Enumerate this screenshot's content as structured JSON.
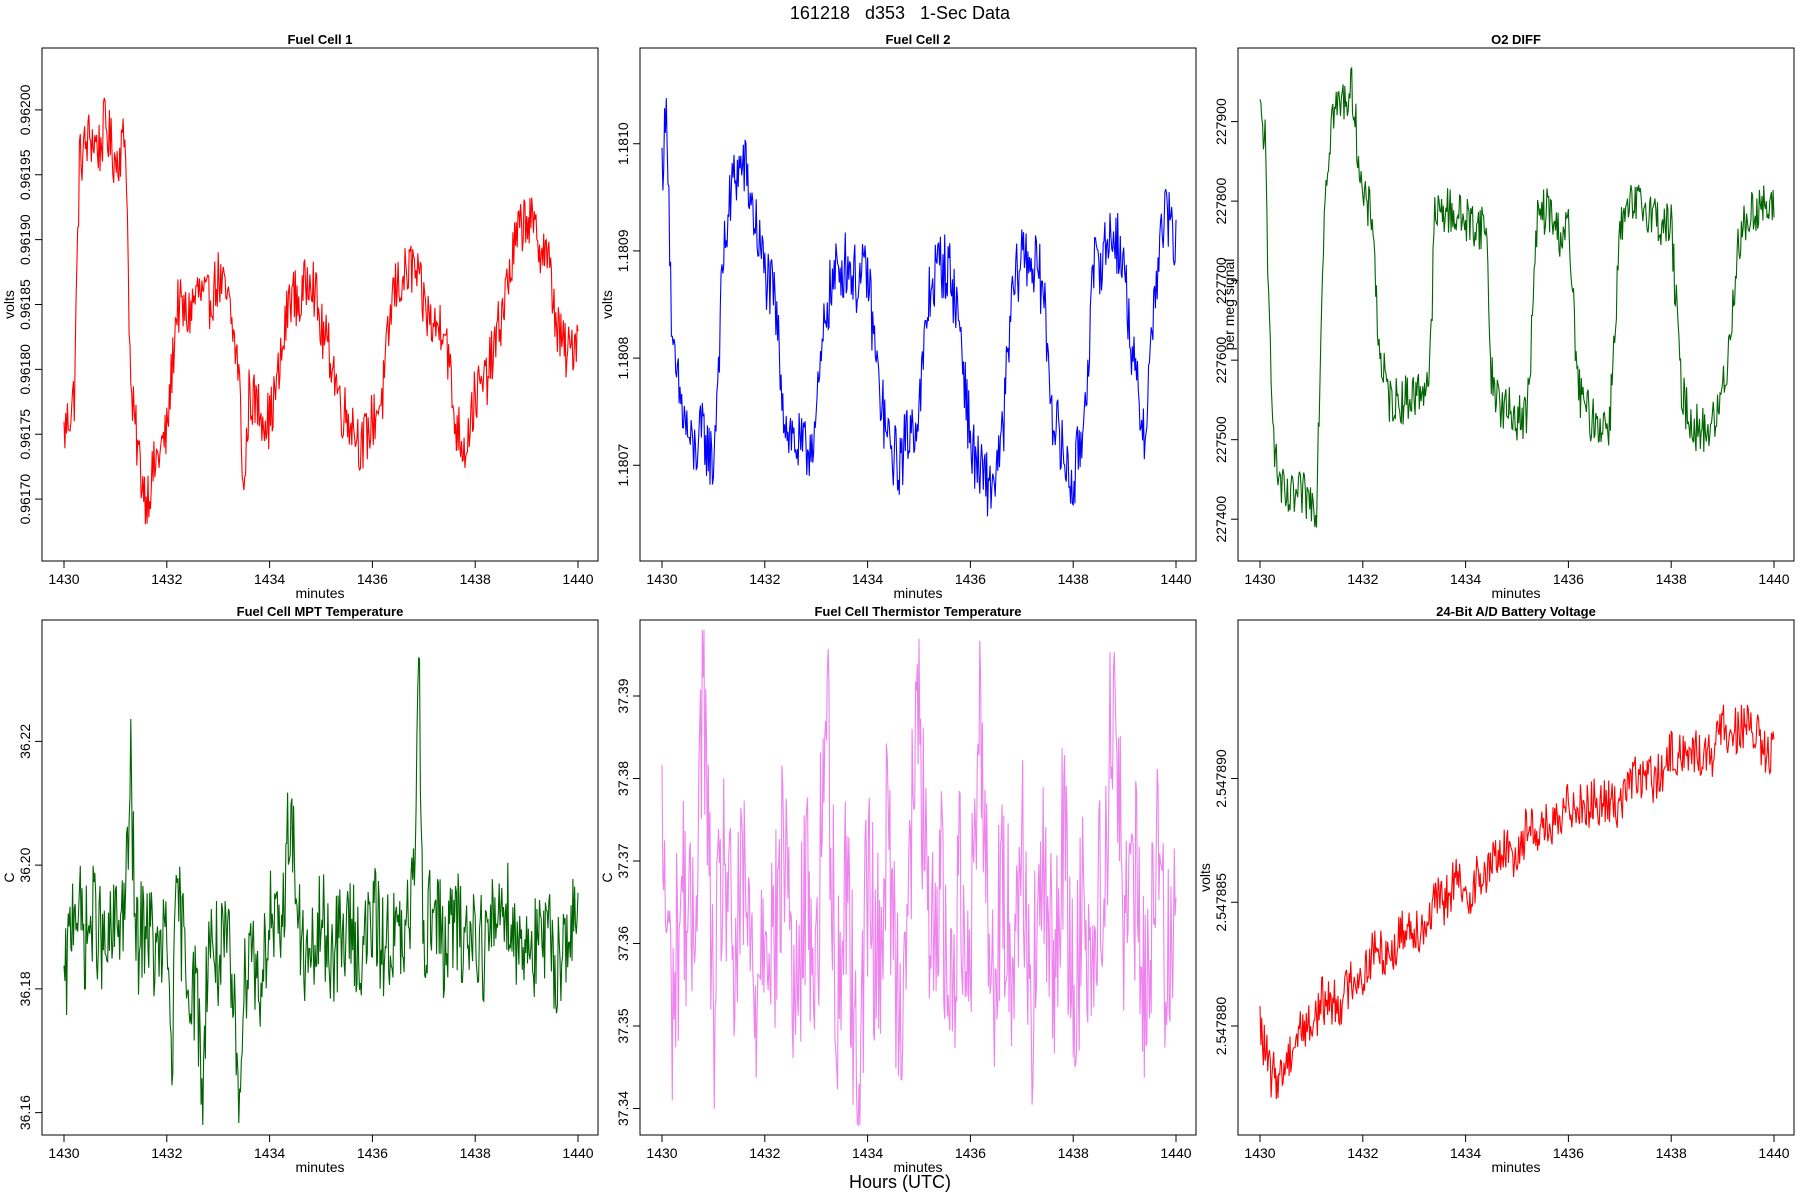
{
  "header": {
    "title": "161218   d353   1-Sec Data"
  },
  "footer": {
    "xlabel": "Hours (UTC)"
  },
  "chart_data": [
    {
      "type": "line",
      "title": "Fuel Cell 1",
      "xlabel": "minutes",
      "ylabel": "volts",
      "color": "#ff0000",
      "xlim": [
        1430,
        1440
      ],
      "ylim": [
        0.96166,
        0.96204
      ],
      "xticks": [
        "1430",
        "1432",
        "1434",
        "1436",
        "1438",
        "1440"
      ],
      "yticks": [
        "0.96170",
        "0.96175",
        "0.96180",
        "0.96185",
        "0.96190",
        "0.96195",
        "0.96200"
      ],
      "series": [
        {
          "x": [
            1430.0,
            1430.2,
            1430.3,
            1430.5,
            1430.7,
            1430.8,
            1431.0,
            1431.2,
            1431.3,
            1431.5,
            1431.6,
            1431.8,
            1432.0,
            1432.2,
            1432.4,
            1432.6,
            1432.8,
            1433.0,
            1433.2,
            1433.4,
            1433.5,
            1433.6,
            1433.8,
            1434.0,
            1434.2,
            1434.4,
            1434.6,
            1434.8,
            1435.0,
            1435.2,
            1435.4,
            1435.6,
            1435.8,
            1436.0,
            1436.2,
            1436.4,
            1436.6,
            1436.8,
            1437.0,
            1437.2,
            1437.4,
            1437.6,
            1437.8,
            1438.0,
            1438.2,
            1438.4,
            1438.6,
            1438.8,
            1439.0,
            1439.2,
            1439.4,
            1439.6,
            1439.8,
            1440.0
          ],
          "y": [
            0.96175,
            0.96178,
            0.96196,
            0.96198,
            0.96197,
            0.96199,
            0.96196,
            0.96198,
            0.96178,
            0.96172,
            0.9617,
            0.96173,
            0.96175,
            0.96185,
            0.96184,
            0.96186,
            0.96185,
            0.96187,
            0.96185,
            0.9618,
            0.9617,
            0.96178,
            0.96177,
            0.96176,
            0.9618,
            0.96186,
            0.96185,
            0.96188,
            0.96183,
            0.96181,
            0.96177,
            0.96176,
            0.96174,
            0.96176,
            0.96178,
            0.96186,
            0.96187,
            0.96188,
            0.96185,
            0.96183,
            0.96184,
            0.96176,
            0.96174,
            0.96178,
            0.96179,
            0.96182,
            0.96186,
            0.9619,
            0.96192,
            0.9619,
            0.96189,
            0.96183,
            0.96181,
            0.96183
          ]
        }
      ]
    },
    {
      "type": "line",
      "title": "Fuel Cell 2",
      "xlabel": "minutes",
      "ylabel": "volts",
      "color": "#0000ff",
      "xlim": [
        1430,
        1440
      ],
      "ylim": [
        1.18062,
        1.18108
      ],
      "xticks": [
        "1430",
        "1432",
        "1434",
        "1436",
        "1438",
        "1440"
      ],
      "yticks": [
        "1.1807",
        "1.1808",
        "1.1809",
        "1.1810"
      ],
      "series": [
        {
          "x": [
            1430.0,
            1430.1,
            1430.2,
            1430.4,
            1430.6,
            1430.8,
            1431.0,
            1431.2,
            1431.4,
            1431.6,
            1431.8,
            1432.0,
            1432.2,
            1432.4,
            1432.6,
            1432.8,
            1433.0,
            1433.2,
            1433.4,
            1433.6,
            1433.8,
            1434.0,
            1434.2,
            1434.4,
            1434.6,
            1434.8,
            1435.0,
            1435.2,
            1435.4,
            1435.6,
            1435.8,
            1436.0,
            1436.2,
            1436.4,
            1436.6,
            1436.8,
            1437.0,
            1437.2,
            1437.4,
            1437.6,
            1437.8,
            1438.0,
            1438.2,
            1438.4,
            1438.6,
            1438.8,
            1439.0,
            1439.2,
            1439.4,
            1439.6,
            1439.8,
            1440.0
          ],
          "y": [
            1.18098,
            1.18103,
            1.1808,
            1.18075,
            1.18071,
            1.18073,
            1.1807,
            1.1809,
            1.18097,
            1.18098,
            1.18093,
            1.18088,
            1.18085,
            1.18074,
            1.18072,
            1.18071,
            1.18074,
            1.18085,
            1.18088,
            1.18089,
            1.18087,
            1.18088,
            1.18078,
            1.18072,
            1.1807,
            1.18073,
            1.18075,
            1.18086,
            1.18089,
            1.18088,
            1.18083,
            1.18072,
            1.18069,
            1.18068,
            1.18071,
            1.18085,
            1.1809,
            1.18089,
            1.18087,
            1.18075,
            1.18071,
            1.18068,
            1.18074,
            1.18088,
            1.1809,
            1.18092,
            1.18088,
            1.18078,
            1.18073,
            1.18087,
            1.18094,
            1.1809
          ]
        }
      ]
    },
    {
      "type": "line",
      "title": "O2 DIFF",
      "xlabel": "minutes",
      "ylabel": "per meg signal",
      "color": "#006400",
      "xlim": [
        1430,
        1440
      ],
      "ylim": [
        227360,
        227980
      ],
      "xticks": [
        "1430",
        "1432",
        "1434",
        "1436",
        "1438",
        "1440"
      ],
      "yticks": [
        "227400",
        "227500",
        "227600",
        "227700",
        "227800",
        "227900"
      ],
      "series": [
        {
          "x": [
            1430.0,
            1430.1,
            1430.15,
            1430.3,
            1430.5,
            1430.8,
            1431.1,
            1431.25,
            1431.4,
            1431.6,
            1431.8,
            1432.0,
            1432.2,
            1432.3,
            1432.5,
            1432.8,
            1433.1,
            1433.3,
            1433.4,
            1433.6,
            1433.9,
            1434.2,
            1434.4,
            1434.5,
            1434.7,
            1435.0,
            1435.2,
            1435.4,
            1435.6,
            1435.8,
            1436.0,
            1436.2,
            1436.4,
            1436.6,
            1436.8,
            1437.0,
            1437.2,
            1437.4,
            1437.6,
            1437.8,
            1438.0,
            1438.2,
            1438.4,
            1438.6,
            1438.8,
            1438.9,
            1439.1,
            1439.3,
            1439.5,
            1439.7,
            1440.0
          ],
          "y": [
            227910,
            227880,
            227700,
            227470,
            227420,
            227430,
            227420,
            227800,
            227910,
            227925,
            227940,
            227800,
            227780,
            227620,
            227550,
            227550,
            227560,
            227580,
            227780,
            227790,
            227780,
            227770,
            227770,
            227580,
            227540,
            227530,
            227530,
            227780,
            227790,
            227760,
            227765,
            227560,
            227530,
            227520,
            227520,
            227760,
            227790,
            227795,
            227790,
            227770,
            227770,
            227560,
            227520,
            227510,
            227520,
            227530,
            227600,
            227745,
            227780,
            227795,
            227785
          ]
        }
      ]
    },
    {
      "type": "line",
      "title": "Fuel Cell MPT Temperature",
      "xlabel": "minutes",
      "ylabel": "C",
      "color": "#006400",
      "xlim": [
        1430,
        1440
      ],
      "ylim": [
        36.158,
        36.238
      ],
      "xticks": [
        "1430",
        "1432",
        "1434",
        "1436",
        "1438",
        "1440"
      ],
      "yticks": [
        "36.16",
        "36.18",
        "36.20",
        "36.22"
      ],
      "series": [
        {
          "x": [
            1430.0,
            1430.2,
            1430.4,
            1430.6,
            1430.8,
            1431.0,
            1431.2,
            1431.3,
            1431.4,
            1431.6,
            1431.8,
            1432.0,
            1432.1,
            1432.2,
            1432.4,
            1432.6,
            1432.7,
            1432.8,
            1433.0,
            1433.2,
            1433.4,
            1433.6,
            1433.8,
            1434.0,
            1434.2,
            1434.4,
            1434.6,
            1434.8,
            1435.0,
            1435.2,
            1435.4,
            1435.6,
            1435.8,
            1436.0,
            1436.2,
            1436.4,
            1436.6,
            1436.8,
            1436.9,
            1437.0,
            1437.2,
            1437.4,
            1437.6,
            1437.8,
            1438.0,
            1438.2,
            1438.4,
            1438.6,
            1438.8,
            1439.0,
            1439.2,
            1439.4,
            1439.6,
            1439.8,
            1440.0
          ],
          "y": [
            36.178,
            36.196,
            36.188,
            36.192,
            36.185,
            36.19,
            36.194,
            36.215,
            36.186,
            36.192,
            36.184,
            36.188,
            36.17,
            36.195,
            36.183,
            36.178,
            36.162,
            36.189,
            36.185,
            36.186,
            36.166,
            36.19,
            36.18,
            36.192,
            36.186,
            36.21,
            36.187,
            36.183,
            36.191,
            36.186,
            36.188,
            36.19,
            36.185,
            36.192,
            36.187,
            36.189,
            36.186,
            36.195,
            36.235,
            36.188,
            36.194,
            36.186,
            36.191,
            36.188,
            36.19,
            36.186,
            36.192,
            36.195,
            36.187,
            36.189,
            36.186,
            36.188,
            36.184,
            36.19,
            36.189
          ]
        }
      ]
    },
    {
      "type": "line",
      "title": "Fuel Cell Thermistor Temperature",
      "xlabel": "minutes",
      "ylabel": "C",
      "color": "#ee82ee",
      "xlim": [
        1430,
        1440
      ],
      "ylim": [
        37.338,
        37.398
      ],
      "xticks": [
        "1430",
        "1432",
        "1434",
        "1436",
        "1438",
        "1440"
      ],
      "yticks": [
        "37.34",
        "37.35",
        "37.36",
        "37.37",
        "37.38",
        "37.39"
      ],
      "series": [
        {
          "x": [
            1430.0,
            1430.2,
            1430.4,
            1430.6,
            1430.8,
            1431.0,
            1431.2,
            1431.4,
            1431.6,
            1431.8,
            1432.0,
            1432.2,
            1432.4,
            1432.6,
            1432.8,
            1433.0,
            1433.2,
            1433.4,
            1433.6,
            1433.8,
            1434.0,
            1434.2,
            1434.4,
            1434.6,
            1434.8,
            1435.0,
            1435.2,
            1435.4,
            1435.6,
            1435.8,
            1436.0,
            1436.2,
            1436.4,
            1436.6,
            1436.8,
            1437.0,
            1437.2,
            1437.4,
            1437.6,
            1437.8,
            1438.0,
            1438.2,
            1438.4,
            1438.6,
            1438.8,
            1439.0,
            1439.2,
            1439.4,
            1439.6,
            1439.8,
            1440.0
          ],
          "y": [
            37.372,
            37.352,
            37.368,
            37.358,
            37.394,
            37.35,
            37.372,
            37.356,
            37.368,
            37.352,
            37.366,
            37.36,
            37.374,
            37.35,
            37.368,
            37.356,
            37.391,
            37.352,
            37.37,
            37.34,
            37.368,
            37.358,
            37.374,
            37.352,
            37.366,
            37.39,
            37.356,
            37.37,
            37.352,
            37.368,
            37.36,
            37.39,
            37.354,
            37.366,
            37.36,
            37.372,
            37.352,
            37.368,
            37.356,
            37.374,
            37.352,
            37.366,
            37.358,
            37.37,
            37.393,
            37.36,
            37.368,
            37.352,
            37.372,
            37.358,
            37.37
          ]
        }
      ]
    },
    {
      "type": "line",
      "title": "24-Bit A/D Battery Voltage",
      "xlabel": "minutes",
      "ylabel": "volts",
      "color": "#ff0000",
      "xlim": [
        1430,
        1440
      ],
      "ylim": [
        2.547876,
        2.547896
      ],
      "xticks": [
        "1430",
        "1432",
        "1434",
        "1436",
        "1438",
        "1440"
      ],
      "yticks": [
        "2.547880",
        "2.547885",
        "2.547890"
      ],
      "series": [
        {
          "x": [
            1430.0,
            1430.2,
            1430.4,
            1430.6,
            1430.8,
            1431.0,
            1431.2,
            1431.4,
            1431.6,
            1431.8,
            1432.0,
            1432.2,
            1432.4,
            1432.6,
            1432.8,
            1433.0,
            1433.2,
            1433.4,
            1433.6,
            1433.8,
            1434.0,
            1434.2,
            1434.4,
            1434.6,
            1434.8,
            1435.0,
            1435.2,
            1435.4,
            1435.6,
            1435.8,
            1436.0,
            1436.2,
            1436.4,
            1436.6,
            1436.8,
            1437.0,
            1437.2,
            1437.4,
            1437.6,
            1437.8,
            1438.0,
            1438.2,
            1438.4,
            1438.6,
            1438.8,
            1439.0,
            1439.2,
            1439.4,
            1439.6,
            1439.8,
            1440.0
          ],
          "y": [
            2.54788,
            2.547878,
            2.547878,
            2.547879,
            2.54788,
            2.54788,
            2.547881,
            2.547881,
            2.547881,
            2.547882,
            2.547882,
            2.547883,
            2.547883,
            2.547883,
            2.547884,
            2.547884,
            2.547884,
            2.547885,
            2.547885,
            2.547886,
            2.547885,
            2.547886,
            2.547886,
            2.547887,
            2.547887,
            2.547887,
            2.547888,
            2.547888,
            2.547888,
            2.547888,
            2.547889,
            2.547889,
            2.547889,
            2.547889,
            2.547889,
            2.547889,
            2.54789,
            2.54789,
            2.54789,
            2.54789,
            2.547891,
            2.547891,
            2.547891,
            2.547891,
            2.547891,
            2.547892,
            2.547892,
            2.547892,
            2.547892,
            2.547891,
            2.547891
          ]
        }
      ]
    }
  ]
}
